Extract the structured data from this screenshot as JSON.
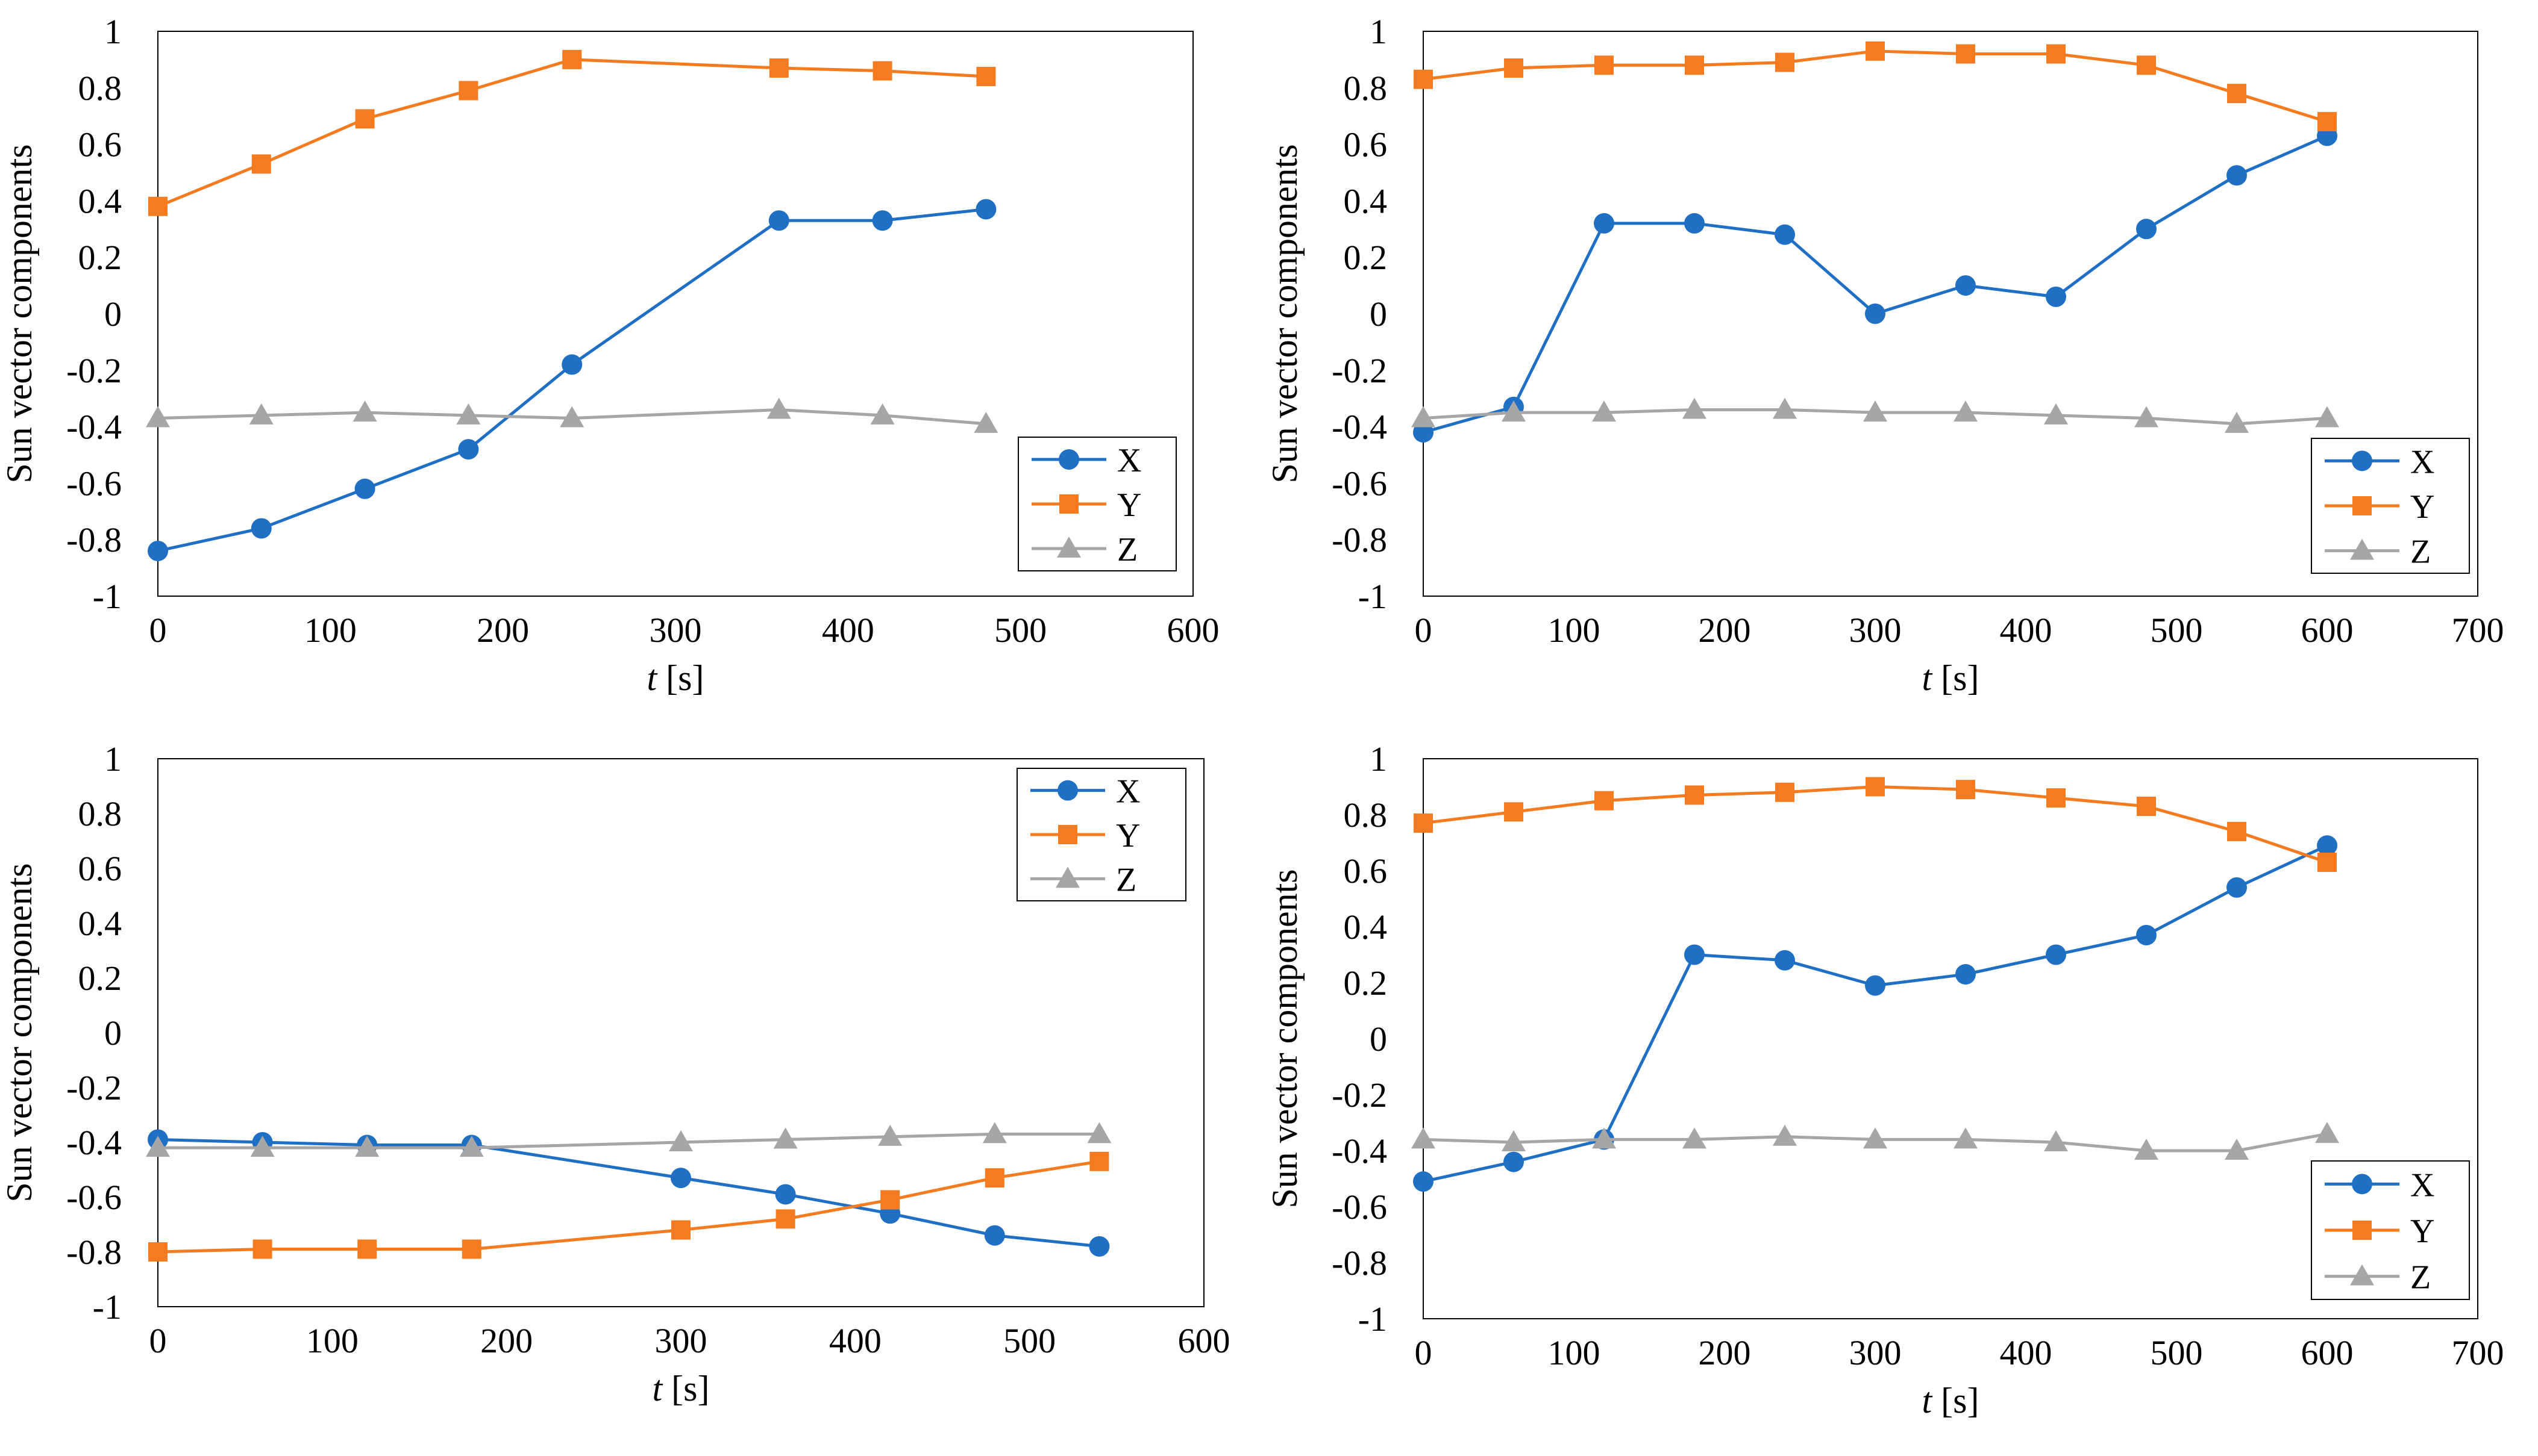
{
  "colors": {
    "X": "#1F6FC5",
    "Y": "#F47B20",
    "Z": "#A6A6A6",
    "frame": "#000000"
  },
  "chart_data": [
    {
      "type": "line",
      "panel": "top-left",
      "title": "",
      "xlabel_italic": "t",
      "xlabel_rest": " [s]",
      "ylabel": "Sun vector components",
      "xlim": [
        0,
        600
      ],
      "ylim": [
        -1,
        1
      ],
      "xticks": [
        0,
        100,
        200,
        300,
        400,
        500,
        600
      ],
      "yticks": [
        1,
        0.8,
        0.6,
        0.4,
        0.2,
        0,
        -0.2,
        -0.4,
        -0.6,
        -0.8,
        -1
      ],
      "legend_position": "bottom-right",
      "series": [
        {
          "name": "X",
          "marker": "circle",
          "x": [
            0,
            60,
            120,
            180,
            240,
            360,
            420,
            480
          ],
          "y": [
            -0.84,
            -0.76,
            -0.62,
            -0.48,
            -0.18,
            0.33,
            0.33,
            0.37
          ]
        },
        {
          "name": "Y",
          "marker": "square",
          "x": [
            0,
            60,
            120,
            180,
            240,
            360,
            420,
            480
          ],
          "y": [
            0.38,
            0.53,
            0.69,
            0.79,
            0.9,
            0.87,
            0.86,
            0.84
          ]
        },
        {
          "name": "Z",
          "marker": "triangle",
          "x": [
            0,
            60,
            120,
            180,
            240,
            360,
            420,
            480
          ],
          "y": [
            -0.37,
            -0.36,
            -0.35,
            -0.36,
            -0.37,
            -0.34,
            -0.36,
            -0.39
          ]
        }
      ]
    },
    {
      "type": "line",
      "panel": "top-right",
      "title": "",
      "xlabel_italic": "t",
      "xlabel_rest": " [s]",
      "ylabel": "Sun vector components",
      "xlim": [
        0,
        700
      ],
      "ylim": [
        -1,
        1
      ],
      "xticks": [
        0,
        100,
        200,
        300,
        400,
        500,
        600,
        700
      ],
      "yticks": [
        1,
        0.8,
        0.6,
        0.4,
        0.2,
        0,
        -0.2,
        -0.4,
        -0.6,
        -0.8,
        -1
      ],
      "legend_position": "bottom-right",
      "series": [
        {
          "name": "X",
          "marker": "circle",
          "x": [
            0,
            60,
            120,
            180,
            240,
            300,
            360,
            420,
            480,
            540,
            600
          ],
          "y": [
            -0.42,
            -0.33,
            0.32,
            0.32,
            0.28,
            0.0,
            0.1,
            0.06,
            0.3,
            0.49,
            0.63
          ]
        },
        {
          "name": "Y",
          "marker": "square",
          "x": [
            0,
            60,
            120,
            180,
            240,
            300,
            360,
            420,
            480,
            540,
            600
          ],
          "y": [
            0.83,
            0.87,
            0.88,
            0.88,
            0.89,
            0.93,
            0.92,
            0.92,
            0.88,
            0.78,
            0.68
          ]
        },
        {
          "name": "Z",
          "marker": "triangle",
          "x": [
            0,
            60,
            120,
            180,
            240,
            300,
            360,
            420,
            480,
            540,
            600
          ],
          "y": [
            -0.37,
            -0.35,
            -0.35,
            -0.34,
            -0.34,
            -0.35,
            -0.35,
            -0.36,
            -0.37,
            -0.39,
            -0.37
          ]
        }
      ]
    },
    {
      "type": "line",
      "panel": "bottom-left",
      "title": "",
      "xlabel_italic": "t",
      "xlabel_rest": " [s]",
      "ylabel": "Sun vector components",
      "xlim": [
        0,
        600
      ],
      "ylim": [
        -1,
        1
      ],
      "xticks": [
        0,
        100,
        200,
        300,
        400,
        500,
        600
      ],
      "yticks": [
        1,
        0.8,
        0.6,
        0.4,
        0.2,
        0,
        -0.2,
        -0.4,
        -0.6,
        -0.8,
        -1
      ],
      "legend_position": "top-right",
      "series": [
        {
          "name": "X",
          "marker": "circle",
          "x": [
            0,
            60,
            120,
            180,
            300,
            360,
            420,
            480,
            540
          ],
          "y": [
            -0.39,
            -0.4,
            -0.41,
            -0.41,
            -0.53,
            -0.59,
            -0.66,
            -0.74,
            -0.78
          ]
        },
        {
          "name": "Y",
          "marker": "square",
          "x": [
            0,
            60,
            120,
            180,
            300,
            360,
            420,
            480,
            540
          ],
          "y": [
            -0.8,
            -0.79,
            -0.79,
            -0.79,
            -0.72,
            -0.68,
            -0.61,
            -0.53,
            -0.47
          ]
        },
        {
          "name": "Z",
          "marker": "triangle",
          "x": [
            0,
            60,
            120,
            180,
            300,
            360,
            420,
            480,
            540
          ],
          "y": [
            -0.42,
            -0.42,
            -0.42,
            -0.42,
            -0.4,
            -0.39,
            -0.38,
            -0.37,
            -0.37
          ]
        }
      ]
    },
    {
      "type": "line",
      "panel": "bottom-right",
      "title": "",
      "xlabel_italic": "t",
      "xlabel_rest": " [s]",
      "ylabel": "Sun vector components",
      "xlim": [
        0,
        700
      ],
      "ylim": [
        -1,
        1
      ],
      "xticks": [
        0,
        100,
        200,
        300,
        400,
        500,
        600,
        700
      ],
      "yticks": [
        1,
        0.8,
        0.6,
        0.4,
        0.2,
        0,
        -0.2,
        -0.4,
        -0.6,
        -0.8,
        -1
      ],
      "legend_position": "bottom-right",
      "series": [
        {
          "name": "X",
          "marker": "circle",
          "x": [
            0,
            60,
            120,
            180,
            240,
            300,
            360,
            420,
            480,
            540,
            600
          ],
          "y": [
            -0.51,
            -0.44,
            -0.36,
            0.3,
            0.28,
            0.19,
            0.23,
            0.3,
            0.37,
            0.54,
            0.69
          ]
        },
        {
          "name": "Y",
          "marker": "square",
          "x": [
            0,
            60,
            120,
            180,
            240,
            300,
            360,
            420,
            480,
            540,
            600
          ],
          "y": [
            0.77,
            0.81,
            0.85,
            0.87,
            0.88,
            0.9,
            0.89,
            0.86,
            0.83,
            0.74,
            0.63
          ]
        },
        {
          "name": "Z",
          "marker": "triangle",
          "x": [
            0,
            60,
            120,
            180,
            240,
            300,
            360,
            420,
            480,
            540,
            600
          ],
          "y": [
            -0.36,
            -0.37,
            -0.36,
            -0.36,
            -0.35,
            -0.36,
            -0.36,
            -0.37,
            -0.4,
            -0.4,
            -0.34
          ]
        }
      ]
    }
  ]
}
